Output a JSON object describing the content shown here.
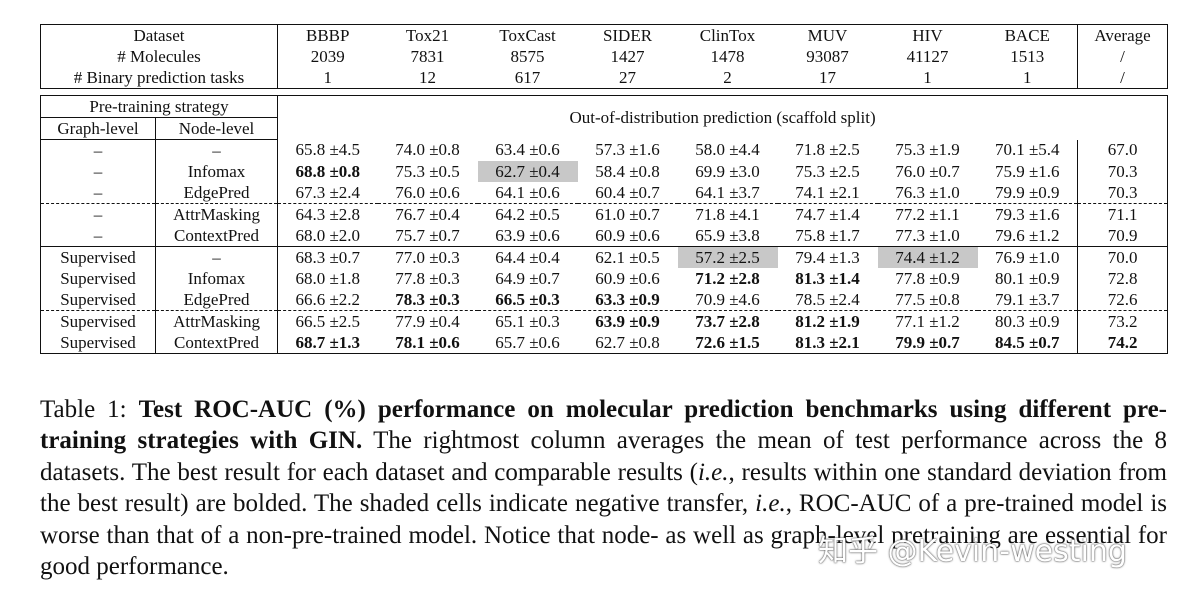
{
  "dataset_table": {
    "header": [
      "Dataset",
      "BBBP",
      "Tox21",
      "ToxCast",
      "SIDER",
      "ClinTox",
      "MUV",
      "HIV",
      "BACE",
      "Average"
    ],
    "rows": [
      [
        "# Molecules",
        "2039",
        "7831",
        "8575",
        "1427",
        "1478",
        "93087",
        "41127",
        "1513",
        "/"
      ],
      [
        "# Binary prediction tasks",
        "1",
        "12",
        "617",
        "27",
        "2",
        "17",
        "1",
        "1",
        "/"
      ]
    ]
  },
  "results_table": {
    "strategy_header": "Pre-training strategy",
    "graph_level_header": "Graph-level",
    "node_level_header": "Node-level",
    "span_header": "Out-of-distribution prediction (scaffold split)",
    "row_groups": [
      [
        [
          "–",
          "–",
          "65.8 ±4.5",
          "74.0 ±0.8",
          "63.4 ±0.6",
          "57.3 ±1.6",
          "58.0 ±4.4",
          "71.8 ±2.5",
          "75.3 ±1.9",
          "70.1 ±5.4",
          "67.0"
        ],
        [
          "–",
          "Infomax",
          {
            "text": "68.8 ±0.8",
            "bold": true
          },
          "75.3 ±0.5",
          {
            "text": "62.7 ±0.4",
            "shaded": true
          },
          "58.4 ±0.8",
          "69.9 ±3.0",
          "75.3 ±2.5",
          "76.0 ±0.7",
          "75.9 ±1.6",
          "70.3"
        ],
        [
          "–",
          "EdgePred",
          "67.3 ±2.4",
          "76.0 ±0.6",
          "64.1 ±0.6",
          "60.4 ±0.7",
          "64.1 ±3.7",
          "74.1 ±2.1",
          "76.3 ±1.0",
          "79.9 ±0.9",
          "70.3"
        ]
      ],
      [
        [
          "–",
          "AttrMasking",
          "64.3 ±2.8",
          "76.7 ±0.4",
          "64.2 ±0.5",
          "61.0 ±0.7",
          "71.8 ±4.1",
          "74.7 ±1.4",
          "77.2 ±1.1",
          "79.3 ±1.6",
          "71.1"
        ],
        [
          "–",
          "ContextPred",
          "68.0 ±2.0",
          "75.7 ±0.7",
          "63.9 ±0.6",
          "60.9 ±0.6",
          "65.9 ±3.8",
          "75.8 ±1.7",
          "77.3 ±1.0",
          "79.6 ±1.2",
          "70.9"
        ]
      ],
      [
        [
          "Supervised",
          "–",
          "68.3 ±0.7",
          "77.0 ±0.3",
          "64.4 ±0.4",
          "62.1 ±0.5",
          {
            "text": "57.2 ±2.5",
            "shaded": true
          },
          "79.4 ±1.3",
          {
            "text": "74.4 ±1.2",
            "shaded": true
          },
          "76.9 ±1.0",
          "70.0"
        ],
        [
          "Supervised",
          "Infomax",
          "68.0 ±1.8",
          "77.8 ±0.3",
          "64.9 ±0.7",
          "60.9 ±0.6",
          {
            "text": "71.2 ±2.8",
            "bold": true
          },
          {
            "text": "81.3 ±1.4",
            "bold": true
          },
          "77.8 ±0.9",
          "80.1 ±0.9",
          "72.8"
        ],
        [
          "Supervised",
          "EdgePred",
          "66.6 ±2.2",
          {
            "text": "78.3 ±0.3",
            "bold": true
          },
          {
            "text": "66.5 ±0.3",
            "bold": true
          },
          {
            "text": "63.3 ±0.9",
            "bold": true
          },
          "70.9 ±4.6",
          "78.5 ±2.4",
          "77.5 ±0.8",
          "79.1 ±3.7",
          "72.6"
        ]
      ],
      [
        [
          "Supervised",
          "AttrMasking",
          "66.5 ±2.5",
          "77.9 ±0.4",
          "65.1 ±0.3",
          {
            "text": "63.9 ±0.9",
            "bold": true
          },
          {
            "text": "73.7 ±2.8",
            "bold": true
          },
          {
            "text": "81.2 ±1.9",
            "bold": true
          },
          "77.1 ±1.2",
          "80.3 ±0.9",
          "73.2"
        ],
        [
          "Supervised",
          "ContextPred",
          {
            "text": "68.7 ±1.3",
            "bold": true
          },
          {
            "text": "78.1 ±0.6",
            "bold": true
          },
          "65.7 ±0.6",
          "62.7 ±0.8",
          {
            "text": "72.6 ±1.5",
            "bold": true
          },
          {
            "text": "81.3 ±2.1",
            "bold": true
          },
          {
            "text": "79.9 ±0.7",
            "bold": true
          },
          {
            "text": "84.5 ±0.7",
            "bold": true
          },
          {
            "text": "74.2",
            "bold": true
          }
        ]
      ]
    ]
  },
  "caption": [
    {
      "text": "Table 1: "
    },
    {
      "text": "Test ROC-AUC (%) performance on molecular prediction benchmarks using different pre-training strategies with GIN.",
      "bold": true
    },
    {
      "text": " The rightmost column averages the mean of test performance across the 8 datasets. The best result for each dataset and comparable results ("
    },
    {
      "text": "i.e.",
      "italic": true
    },
    {
      "text": ", results within one standard deviation from the best result) are bolded. The shaded cells indicate negative transfer, "
    },
    {
      "text": "i.e.",
      "italic": true
    },
    {
      "text": ", ROC-AUC of a pre-trained model is worse than that of a non-pre-trained model. Notice that node- as well as graph-level pretraining are essential for good performance."
    }
  ],
  "watermark": "知乎 @Kevin-westing"
}
